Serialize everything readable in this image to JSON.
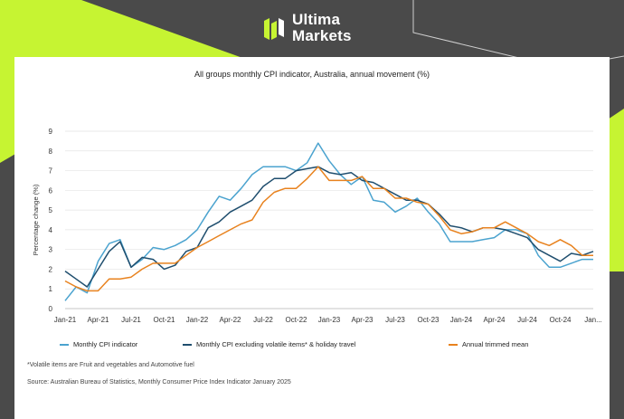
{
  "brand": {
    "line1": "Ultima",
    "line2": "Markets",
    "accent": "#c6f432"
  },
  "colors": {
    "background": "#4a4a4a",
    "lime": "#c6f432",
    "card": "#ffffff"
  },
  "chart_data": {
    "type": "line",
    "title": "All groups monthly CPI indicator, Australia, annual movement (%)",
    "ylabel": "Percentage change (%)",
    "xlabel": "",
    "ylim": [
      0,
      9
    ],
    "yticks": [
      0,
      1,
      2,
      3,
      4,
      5,
      6,
      7,
      8,
      9
    ],
    "grid": true,
    "legend_position": "bottom",
    "x": [
      "Jan-21",
      "Feb-21",
      "Mar-21",
      "Apr-21",
      "May-21",
      "Jun-21",
      "Jul-21",
      "Aug-21",
      "Sep-21",
      "Oct-21",
      "Nov-21",
      "Dec-21",
      "Jan-22",
      "Feb-22",
      "Mar-22",
      "Apr-22",
      "May-22",
      "Jun-22",
      "Jul-22",
      "Aug-22",
      "Sep-22",
      "Oct-22",
      "Nov-22",
      "Dec-22",
      "Jan-23",
      "Feb-23",
      "Mar-23",
      "Apr-23",
      "May-23",
      "Jun-23",
      "Jul-23",
      "Aug-23",
      "Sep-23",
      "Oct-23",
      "Nov-23",
      "Dec-23",
      "Jan-24",
      "Feb-24",
      "Mar-24",
      "Apr-24",
      "May-24",
      "Jun-24",
      "Jul-24",
      "Aug-24",
      "Sep-24",
      "Oct-24",
      "Nov-24",
      "Dec-24",
      "Jan-25"
    ],
    "xtick_labels": [
      "Jan-21",
      "Apr-21",
      "Jul-21",
      "Oct-21",
      "Jan-22",
      "Apr-22",
      "Jul-22",
      "Oct-22",
      "Jan-23",
      "Apr-23",
      "Jul-23",
      "Oct-23",
      "Jan-24",
      "Apr-24",
      "Jul-24",
      "Oct-24",
      "Jan..."
    ],
    "series": [
      {
        "name": "Monthly CPI indicator",
        "color": "#4ba3cf",
        "values": [
          0.4,
          1.1,
          0.8,
          2.4,
          3.3,
          3.5,
          2.1,
          2.5,
          3.1,
          3.0,
          3.2,
          3.5,
          4.0,
          4.9,
          5.7,
          5.5,
          6.1,
          6.8,
          7.2,
          7.2,
          7.2,
          7.0,
          7.4,
          8.4,
          7.5,
          6.8,
          6.3,
          6.7,
          5.5,
          5.4,
          4.9,
          5.2,
          5.6,
          4.9,
          4.3,
          3.4,
          3.4,
          3.4,
          3.5,
          3.6,
          4.0,
          4.0,
          3.8,
          2.7,
          2.1,
          2.1,
          2.3,
          2.5,
          2.5
        ]
      },
      {
        "name": "Monthly CPI excluding volatile items* & holiday travel",
        "color": "#1f4e6e",
        "values": [
          1.9,
          1.5,
          1.1,
          2.0,
          2.9,
          3.4,
          2.1,
          2.6,
          2.5,
          2.0,
          2.2,
          2.9,
          3.1,
          4.1,
          4.4,
          4.9,
          5.2,
          5.5,
          6.2,
          6.6,
          6.6,
          7.0,
          7.1,
          7.2,
          6.9,
          6.8,
          6.9,
          6.5,
          6.4,
          6.1,
          5.8,
          5.5,
          5.5,
          5.3,
          4.8,
          4.2,
          4.1,
          3.9,
          4.1,
          4.1,
          4.0,
          3.8,
          3.6,
          3.0,
          2.7,
          2.4,
          2.8,
          2.7,
          2.9
        ]
      },
      {
        "name": "Annual trimmed mean",
        "color": "#e8821e",
        "values": [
          1.4,
          1.1,
          0.9,
          0.9,
          1.5,
          1.5,
          1.6,
          2.0,
          2.3,
          2.3,
          2.3,
          2.7,
          3.1,
          3.4,
          3.7,
          4.0,
          4.3,
          4.5,
          5.4,
          5.9,
          6.1,
          6.1,
          6.6,
          7.2,
          6.5,
          6.5,
          6.5,
          6.7,
          6.1,
          6.1,
          5.6,
          5.6,
          5.4,
          5.3,
          4.7,
          4.0,
          3.8,
          3.9,
          4.1,
          4.1,
          4.4,
          4.1,
          3.8,
          3.4,
          3.2,
          3.5,
          3.2,
          2.7,
          2.7
        ]
      }
    ]
  },
  "notes": {
    "footnote": "*Volatile items are Fruit and vegetables and Automotive fuel",
    "source": "Source: Australian Bureau of Statistics, Monthly Consumer Price Index Indicator January 2025"
  }
}
